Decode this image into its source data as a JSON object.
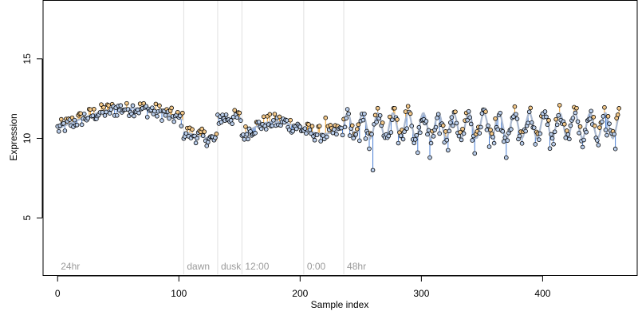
{
  "chart_data": {
    "type": "scatter",
    "title": "",
    "xlabel": "Sample index",
    "ylabel": "Expression",
    "xlim": [
      -12,
      478
    ],
    "ylim": [
      1.4,
      18.7
    ],
    "xticks": [
      0,
      100,
      200,
      300,
      400
    ],
    "yticks": [
      5,
      10,
      15
    ],
    "segments": [
      {
        "label": "24hr",
        "x": 0
      },
      {
        "label": "dawn",
        "x": 104
      },
      {
        "label": "dusk",
        "x": 132
      },
      {
        "label": "12:00",
        "x": 152
      },
      {
        "label": "0:00",
        "x": 203
      },
      {
        "label": "48hr",
        "x": 236
      }
    ],
    "boundaries": [
      104,
      132,
      152,
      203,
      236
    ],
    "series": [
      {
        "style": "observed-points",
        "color": "#000000",
        "note": "open circles, ~464 samples, values between ~8 and ~12.2"
      },
      {
        "style": "fitted-line",
        "color": "#7a9fd6"
      },
      {
        "style": "residuals-above",
        "color": "#f0a028"
      },
      {
        "style": "residuals-below",
        "color": "#4a7fd4"
      }
    ],
    "n_samples": 464,
    "grid": false
  }
}
